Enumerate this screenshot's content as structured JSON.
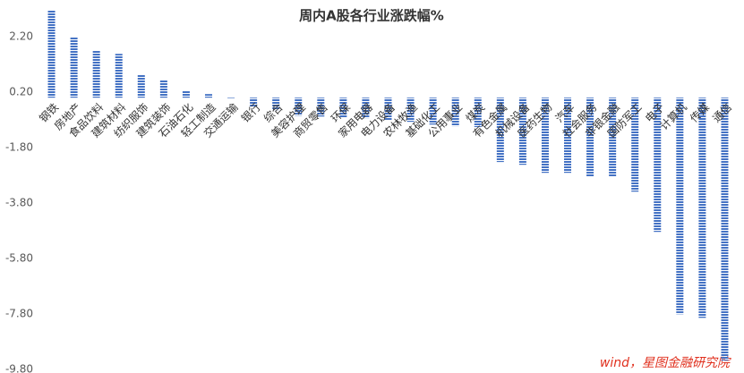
{
  "chart_data": {
    "type": "bar",
    "title": "周内A股各行业涨跌幅%",
    "categories": [
      "钢铁",
      "房地产",
      "食品饮料",
      "建筑材料",
      "纺织服饰",
      "建筑装饰",
      "石油石化",
      "轻工制造",
      "交通运输",
      "银行",
      "综合",
      "美容护理",
      "商贸零售",
      "环保",
      "家用电器",
      "电力设备",
      "农林牧渔",
      "基础化工",
      "公用事业",
      "煤炭",
      "有色金属",
      "机械设备",
      "医药生物",
      "汽车",
      "社会服务",
      "非银金融",
      "国防军工",
      "电子",
      "计算机",
      "传媒",
      "通信"
    ],
    "values": [
      3.15,
      2.19,
      1.71,
      1.58,
      0.84,
      0.65,
      0.26,
      0.13,
      -0.02,
      -0.32,
      -0.45,
      -0.65,
      -0.68,
      -0.71,
      -0.74,
      -0.81,
      -0.87,
      -0.97,
      -1.03,
      -1.06,
      -2.32,
      -2.42,
      -2.71,
      -2.71,
      -2.84,
      -2.84,
      -3.39,
      -4.84,
      -7.81,
      -7.94,
      -9.48
    ],
    "color": "#4472c4",
    "ylim": [
      -9.8,
      3.2
    ],
    "yticks": [
      {
        "value": 2.2,
        "label": "2.20"
      },
      {
        "value": 0.2,
        "label": "0.20"
      },
      {
        "value": -1.8,
        "label": "-1.80"
      },
      {
        "value": -3.8,
        "label": "-3.80"
      },
      {
        "value": -5.8,
        "label": "-5.80"
      },
      {
        "value": -7.8,
        "label": "-7.80"
      },
      {
        "value": -9.8,
        "label": "-9.80"
      }
    ],
    "annotation": "wind，星图金融研究院"
  }
}
